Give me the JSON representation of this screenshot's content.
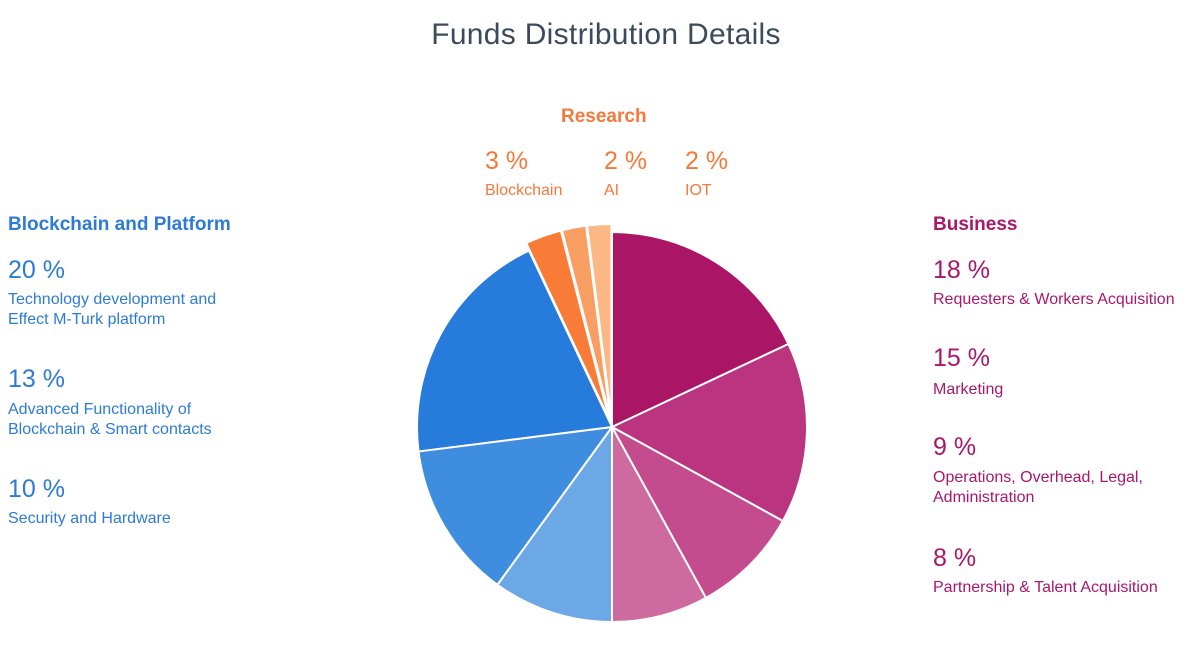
{
  "title": "Funds Distribution Details",
  "colors": {
    "blue": "#2d7bd6",
    "magenta": "#a8176b",
    "orange": "#f4793a"
  },
  "groups": {
    "blockchain": {
      "heading": "Blockchain and Platform",
      "items": [
        {
          "pct": "20 %",
          "label": "Technology development and Effect M-Turk platform"
        },
        {
          "pct": "13 %",
          "label": "Advanced Functionality of Blockchain & Smart contacts"
        },
        {
          "pct": "10 %",
          "label": "Security and Hardware"
        }
      ]
    },
    "research": {
      "heading": "Research",
      "items": [
        {
          "pct": "3 %",
          "label": "Blockchain"
        },
        {
          "pct": "2 %",
          "label": "AI"
        },
        {
          "pct": "2 %",
          "label": "IOT"
        }
      ]
    },
    "business": {
      "heading": "Business",
      "items": [
        {
          "pct": "18 %",
          "label": "Requesters & Workers Acquisition"
        },
        {
          "pct": "15 %",
          "label": "Marketing"
        },
        {
          "pct": "9 %",
          "label": "Operations, Overhead, Legal, Administration"
        },
        {
          "pct": "8 %",
          "label": "Partnership & Talent Acquisition"
        }
      ]
    }
  },
  "chart_data": {
    "type": "pie",
    "title": "Funds Distribution Details",
    "slices": [
      {
        "label": "Requesters & Workers Acquisition",
        "group": "Business",
        "value": 18,
        "color": "#ab1566"
      },
      {
        "label": "Marketing",
        "group": "Business",
        "value": 15,
        "color": "#bb3480"
      },
      {
        "label": "Operations, Overhead, Legal, Administration",
        "group": "Business",
        "value": 9,
        "color": "#c44c8e"
      },
      {
        "label": "Partnership & Talent Acquisition",
        "group": "Business",
        "value": 8,
        "color": "#cd6a9f"
      },
      {
        "label": "Security and Hardware",
        "group": "Blockchain and Platform",
        "value": 10,
        "color": "#6ca8e6"
      },
      {
        "label": "Advanced Functionality of Blockchain & Smart contacts",
        "group": "Blockchain and Platform",
        "value": 13,
        "color": "#3f8ddf"
      },
      {
        "label": "Technology development and Effect M-Turk platform",
        "group": "Blockchain and Platform",
        "value": 20,
        "color": "#277bdb"
      },
      {
        "label": "Blockchain",
        "group": "Research",
        "value": 3,
        "color": "#f87c37"
      },
      {
        "label": "AI",
        "group": "Research",
        "value": 2,
        "color": "#f99e63"
      },
      {
        "label": "IOT",
        "group": "Research",
        "value": 2,
        "color": "#fbb784"
      }
    ],
    "legend": "grouped labels left, top and right of pie"
  }
}
